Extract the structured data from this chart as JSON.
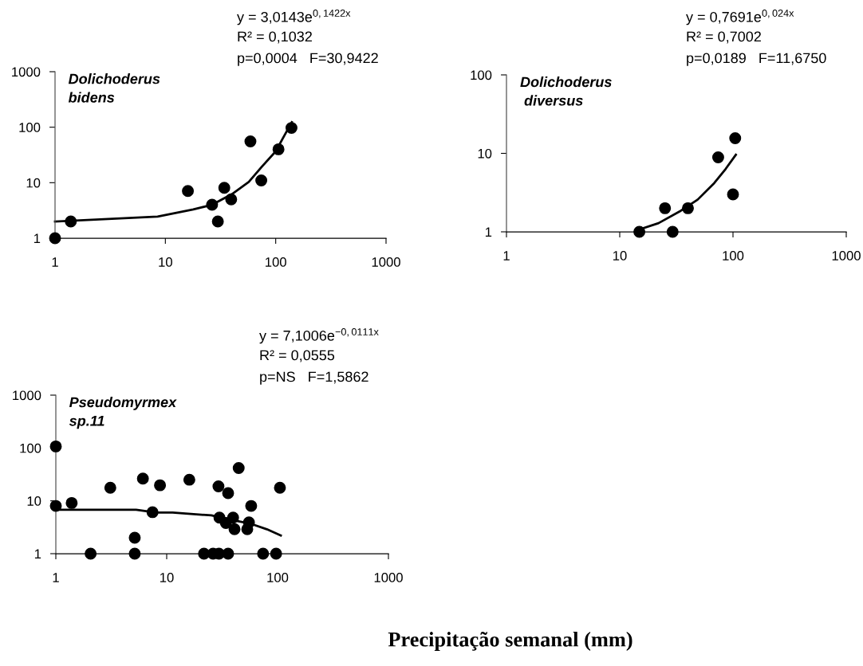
{
  "chart_data": [
    {
      "type": "scatter",
      "title": "Dolichoderus\nbidens",
      "log": "xy",
      "marker": "circle",
      "grid": false,
      "legend": false,
      "xlim": [
        1,
        1000
      ],
      "xticks": [
        1,
        10,
        100,
        1000
      ],
      "ylim": [
        1,
        1000
      ],
      "yticks": [
        1,
        10,
        100,
        1000
      ],
      "annotations": [
        "y = 3,0143e$^{0,1422x}$",
        "R² = 0,1032",
        "p=0,0004   F=30,9422"
      ],
      "series": [
        {
          "color": "#000000",
          "x": [
            1,
            1.39,
            16,
            26.5,
            29.9,
            34.2,
            39.5,
            59,
            74,
            106,
            139
          ],
          "values": [
            1,
            2,
            7.1,
            4,
            2,
            8.1,
            5,
            55.6,
            11,
            40,
            97
          ]
        },
        {
          "type": "line",
          "marker": "none",
          "color": "#000000",
          "x": [
            1,
            8.5,
            17.9,
            26.5,
            40,
            57,
            75,
            100,
            119,
            140
          ],
          "values": [
            2,
            2.45,
            3.3,
            4,
            6.2,
            10.3,
            19.5,
            36.7,
            69,
            123
          ]
        }
      ]
    },
    {
      "type": "scatter",
      "title": "Dolichoderus\n diversus",
      "log": "xy",
      "marker": "circle",
      "grid": false,
      "legend": false,
      "xlim": [
        1,
        1000
      ],
      "xticks": [
        1,
        10,
        100,
        1000
      ],
      "ylim": [
        1,
        100
      ],
      "yticks": [
        1,
        10,
        100
      ],
      "annotations": [
        "y = 0,7691e$^{0,024x}$",
        "R² = 0,7002",
        "p=0,0189   F=11,6750"
      ],
      "series": [
        {
          "color": "#000000",
          "x": [
            14.9,
            25.1,
            29.3,
            40,
            74,
            100,
            104.6
          ],
          "values": [
            1,
            2,
            1,
            2,
            8.9,
            3,
            15.6
          ]
        },
        {
          "type": "line",
          "marker": "none",
          "color": "#000000",
          "x": [
            14.9,
            22,
            34.7,
            48.7,
            68.4,
            85.9,
            106
          ],
          "values": [
            1.07,
            1.29,
            1.86,
            2.57,
            4.19,
            6.3,
            9.6
          ]
        }
      ]
    },
    {
      "type": "scatter",
      "title": "Pseudomyrmex\nsp.11",
      "log": "xy",
      "marker": "circle",
      "grid": false,
      "legend": false,
      "xlim": [
        1,
        1000
      ],
      "xticks": [
        1,
        10,
        100,
        1000
      ],
      "ylim": [
        1,
        1000
      ],
      "yticks": [
        1,
        10,
        100,
        1000
      ],
      "annotations": [
        "y = 7,1006e$^{−0,0111x}$",
        "R² = 0,0555",
        "p=NS   F=1,5862",
        "Precipitação semanal (mm)"
      ],
      "series": [
        {
          "color": "#000000",
          "x": [
            1,
            1,
            1.39,
            2.06,
            3.1,
            5.15,
            5.15,
            6.1,
            7.45,
            8.7,
            16,
            21.7,
            26.2,
            29.6,
            29.3,
            29.9,
            34.2,
            35.8,
            35.8,
            39.7,
            40.9,
            44.6,
            53.3,
            55.2,
            57.8,
            74,
            97,
            105
          ],
          "values": [
            107,
            8,
            9.1,
            1,
            17.7,
            2,
            1,
            26.4,
            6.1,
            19.7,
            25.1,
            1,
            1,
            1,
            18.8,
            4.8,
            3.8,
            14,
            1,
            4.8,
            2.9,
            41.8,
            2.9,
            3.9,
            8,
            1,
            1,
            17.7
          ]
        },
        {
          "type": "line",
          "marker": "none",
          "color": "#000000",
          "x": [
            1,
            5.3,
            8,
            11.3,
            25.3,
            37.9,
            56.8,
            80,
            107
          ],
          "values": [
            6.8,
            6.8,
            6.0,
            6.0,
            5.3,
            4.4,
            3.7,
            2.9,
            2.2
          ]
        }
      ]
    }
  ]
}
